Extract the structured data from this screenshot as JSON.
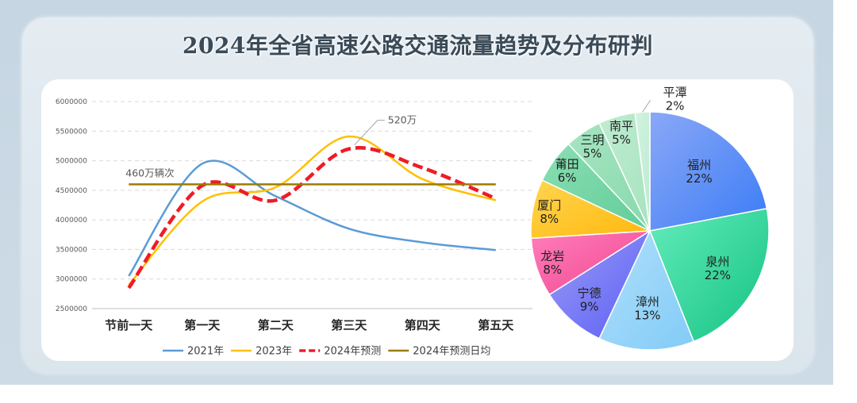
{
  "title": "2024年全省高速公路交通流量趋势及分布研判",
  "chart_data": [
    {
      "type": "line",
      "categories": [
        "节前一天",
        "第一天",
        "第二天",
        "第三天",
        "第四天",
        "第五天"
      ],
      "series": [
        {
          "name": "2021年",
          "values": [
            3050000,
            4950000,
            4400000,
            3850000,
            3620000,
            3490000
          ],
          "color": "#5b9bd5",
          "dashed": false
        },
        {
          "name": "2023年",
          "values": [
            2900000,
            4310000,
            4550000,
            5410000,
            4690000,
            4330000
          ],
          "color": "#ffc000",
          "dashed": false
        },
        {
          "name": "2024年预测",
          "values": [
            2850000,
            4580000,
            4330000,
            5200000,
            4880000,
            4360000
          ],
          "color": "#ee1c25",
          "dashed": true
        },
        {
          "name": "2024年预测日均",
          "values": [
            4600000,
            4600000,
            4600000,
            4600000,
            4600000,
            4600000
          ],
          "color": "#9e7b00",
          "dashed": false
        }
      ],
      "yticks": [
        6000000,
        5500000,
        5000000,
        4500000,
        4000000,
        3500000,
        3000000,
        2500000
      ],
      "ylim": [
        2500000,
        6000000
      ],
      "grid": true,
      "legend": "bottom",
      "annotations": [
        {
          "text": "460万辆次",
          "series": "2024年预测日均",
          "category": "节前一天",
          "leader": false
        },
        {
          "text": "520万",
          "series": "2024年预测",
          "category": "第三天",
          "leader": true
        }
      ]
    },
    {
      "type": "pie",
      "categories": [
        "福州",
        "泉州",
        "漳州",
        "宁德",
        "龙岩",
        "厦门",
        "莆田",
        "三明",
        "南平",
        "平潭"
      ],
      "values": [
        22,
        22,
        13,
        9,
        8,
        8,
        6,
        5,
        5,
        2
      ],
      "unit": "%",
      "colors": [
        [
          "#8aa8f7",
          "#3b7cf6"
        ],
        [
          "#63ecbb",
          "#14c283"
        ],
        [
          "#b0e0fb",
          "#82cbf7"
        ],
        [
          "#9a9cf9",
          "#5b5ef2"
        ],
        [
          "#ff7dbb",
          "#f0478f"
        ],
        [
          "#ffd54f",
          "#ffb80d"
        ],
        [
          "#8adfb3",
          "#62cc98"
        ],
        [
          "#a6e5c1",
          "#88d9ad"
        ],
        [
          "#c0ecd1",
          "#a6e3bf"
        ],
        [
          "#d2f3e0",
          "#bdebcf"
        ]
      ]
    }
  ]
}
